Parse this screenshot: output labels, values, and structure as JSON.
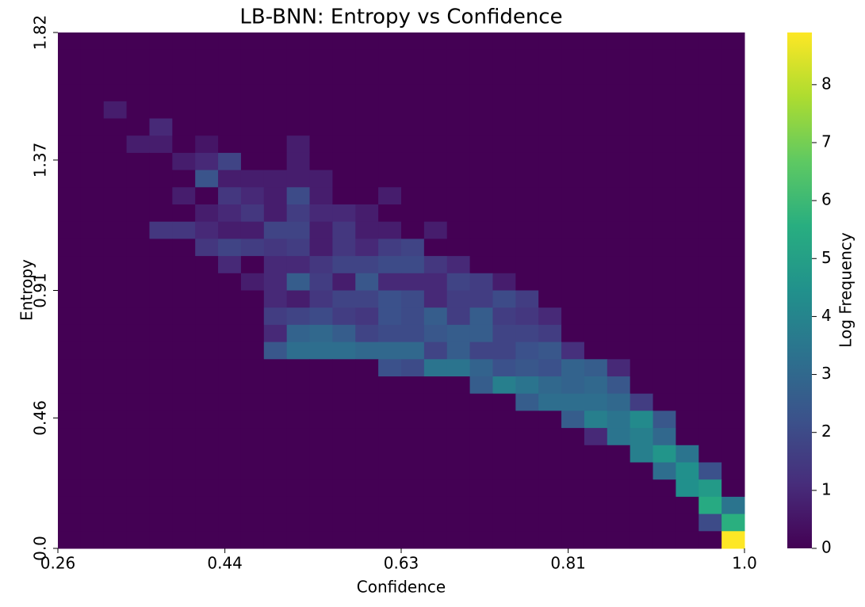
{
  "chart_data": {
    "type": "heatmap",
    "title": "LB-BNN: Entropy vs Confidence",
    "xlabel": "Confidence",
    "ylabel": "Entropy",
    "colorbar_label": "Log Frequency",
    "colormap": "viridis",
    "xlim": [
      0.26,
      1
    ],
    "xticks": [
      0.26,
      0.44,
      0.63,
      0.81,
      {
        "value": 1,
        "label": "1.0"
      }
    ],
    "ylim": [
      0,
      1.82
    ],
    "yticks": [
      {
        "value": 0,
        "label": "0.0"
      },
      0.46,
      0.91,
      1.37,
      1.82
    ],
    "zlim": [
      0,
      8.9
    ],
    "zticks": [
      0,
      1,
      2,
      3,
      4,
      5,
      6,
      7,
      8
    ],
    "values": [
      [
        0,
        0,
        0,
        0,
        0,
        0,
        0,
        0,
        0,
        0,
        0,
        0,
        0,
        0,
        0,
        0,
        0,
        0,
        0,
        0,
        0,
        0,
        0,
        0,
        0,
        0,
        0,
        0,
        0,
        0
      ],
      [
        0,
        0,
        0,
        0,
        0,
        0,
        0,
        0,
        0,
        0,
        0,
        0,
        0,
        0,
        0,
        0,
        0,
        0,
        0,
        0,
        0,
        0,
        0,
        0,
        0,
        0,
        0,
        0,
        0,
        0
      ],
      [
        0,
        0,
        0,
        0,
        0,
        0,
        0,
        0,
        0,
        0,
        0,
        0,
        0,
        0,
        0,
        0,
        0,
        0,
        0,
        0,
        0,
        0,
        0,
        0,
        0,
        0,
        0,
        0,
        0,
        0
      ],
      [
        0,
        0,
        0,
        0,
        0,
        0,
        0,
        0,
        0,
        0,
        0,
        0,
        0,
        0,
        0,
        0,
        0,
        0,
        0,
        0,
        0,
        0,
        0,
        0,
        0,
        0,
        0,
        0,
        0,
        0
      ],
      [
        0,
        0,
        0.7,
        0,
        0,
        0,
        0,
        0,
        0,
        0,
        0,
        0,
        0,
        0,
        0,
        0,
        0,
        0,
        0,
        0,
        0,
        0,
        0,
        0,
        0,
        0,
        0,
        0,
        0,
        0
      ],
      [
        0,
        0,
        0,
        0,
        1,
        0,
        0,
        0,
        0,
        0,
        0,
        0,
        0,
        0,
        0,
        0,
        0,
        0,
        0,
        0,
        0,
        0,
        0,
        0,
        0,
        0,
        0,
        0,
        0,
        0
      ],
      [
        0,
        0,
        0,
        0.7,
        0.7,
        0,
        0.5,
        0,
        0,
        0,
        0.7,
        0,
        0,
        0,
        0,
        0,
        0,
        0,
        0,
        0,
        0,
        0,
        0,
        0,
        0,
        0,
        0,
        0,
        0,
        0
      ],
      [
        0,
        0,
        0,
        0,
        0,
        0.7,
        1,
        1.8,
        0,
        0,
        0.7,
        0,
        0,
        0,
        0,
        0,
        0,
        0,
        0,
        0,
        0,
        0,
        0,
        0,
        0,
        0,
        0,
        0,
        0,
        0
      ],
      [
        0,
        0,
        0,
        0,
        0,
        0,
        2.3,
        0.7,
        0.7,
        0.7,
        0.7,
        0.7,
        0,
        0,
        0,
        0,
        0,
        0,
        0,
        0,
        0,
        0,
        0,
        0,
        0,
        0,
        0,
        0,
        0,
        0
      ],
      [
        0,
        0,
        0,
        0,
        0,
        0.7,
        0,
        1.4,
        1,
        0.7,
        2,
        0.7,
        0,
        0,
        0.7,
        0,
        0,
        0,
        0,
        0,
        0,
        0,
        0,
        0,
        0,
        0,
        0,
        0,
        0,
        0
      ],
      [
        0,
        0,
        0,
        0,
        0,
        0,
        0.7,
        1,
        1.4,
        0.7,
        1.6,
        1,
        1,
        0.7,
        0,
        0,
        0,
        0,
        0,
        0,
        0,
        0,
        0,
        0,
        0,
        0,
        0,
        0,
        0,
        0
      ],
      [
        0,
        0,
        0,
        0,
        1.4,
        1.4,
        1,
        0.7,
        0.7,
        1.8,
        1.8,
        0.7,
        1.4,
        0.7,
        0.7,
        0,
        0.7,
        0,
        0,
        0,
        0,
        0,
        0,
        0,
        0,
        0,
        0,
        0,
        0,
        0
      ],
      [
        0,
        0,
        0,
        0,
        0,
        0,
        1.4,
        1.8,
        1.6,
        1.4,
        1.6,
        0.7,
        1.4,
        1,
        1.6,
        1.8,
        0,
        0,
        0,
        0,
        0,
        0,
        0,
        0,
        0,
        0,
        0,
        0,
        0,
        0
      ],
      [
        0,
        0,
        0,
        0,
        0,
        0,
        0,
        1,
        0,
        1,
        1,
        1.4,
        1.8,
        1.8,
        2,
        2,
        1.4,
        1,
        0,
        0,
        0,
        0,
        0,
        0,
        0,
        0,
        0,
        0,
        0,
        0
      ],
      [
        0,
        0,
        0,
        0,
        0,
        0,
        0,
        0,
        0.7,
        1,
        2.6,
        1.6,
        0.7,
        2.4,
        1,
        1,
        1,
        1.8,
        1.6,
        0.7,
        0,
        0,
        0,
        0,
        0,
        0,
        0,
        0,
        0,
        0
      ],
      [
        0,
        0,
        0,
        0,
        0,
        0,
        0,
        0,
        0,
        1,
        0.7,
        1.4,
        1.8,
        1.8,
        2.2,
        2,
        1,
        1.6,
        1.6,
        2,
        1.6,
        0,
        0,
        0,
        0,
        0,
        0,
        0,
        0,
        0
      ],
      [
        0,
        0,
        0,
        0,
        0,
        0,
        0,
        0,
        0,
        1.6,
        1.8,
        2,
        1.6,
        1.4,
        2.2,
        2,
        2.6,
        1.6,
        2.6,
        1.6,
        1.4,
        1,
        0,
        0,
        0,
        0,
        0,
        0,
        0,
        0
      ],
      [
        0,
        0,
        0,
        0,
        0,
        0,
        0,
        0,
        0,
        1,
        2.8,
        3,
        2.6,
        1.8,
        2,
        2,
        2.4,
        2.6,
        2.6,
        1.8,
        1.8,
        1.6,
        0,
        0,
        0,
        0,
        0,
        0,
        0,
        0
      ],
      [
        0,
        0,
        0,
        0,
        0,
        0,
        0,
        0,
        0,
        2.4,
        3.2,
        3.2,
        3.2,
        3,
        3,
        3,
        1.8,
        2.6,
        1.8,
        1.8,
        2.2,
        2.4,
        1.2,
        0,
        0,
        0,
        0,
        0,
        0,
        0
      ],
      [
        0,
        0,
        0,
        0,
        0,
        0,
        0,
        0,
        0,
        0,
        0,
        0,
        0,
        0,
        2.2,
        2,
        3.4,
        3.4,
        2.8,
        2.2,
        2.4,
        2.2,
        2.8,
        2.6,
        1,
        0,
        0,
        0,
        0,
        0
      ],
      [
        0,
        0,
        0,
        0,
        0,
        0,
        0,
        0,
        0,
        0,
        0,
        0,
        0,
        0,
        0,
        0,
        0,
        0,
        2.6,
        3.8,
        3.4,
        3,
        2.8,
        3,
        2.4,
        0,
        0,
        0,
        0,
        0
      ],
      [
        0,
        0,
        0,
        0,
        0,
        0,
        0,
        0,
        0,
        0,
        0,
        0,
        0,
        0,
        0,
        0,
        0,
        0,
        0,
        0,
        2.6,
        3.2,
        3.2,
        3.2,
        3,
        1.6,
        0,
        0,
        0,
        0
      ],
      [
        0,
        0,
        0,
        0,
        0,
        0,
        0,
        0,
        0,
        0,
        0,
        0,
        0,
        0,
        0,
        0,
        0,
        0,
        0,
        0,
        0,
        0,
        2.6,
        3.8,
        3.4,
        4.2,
        2.4,
        0,
        0,
        0
      ],
      [
        0,
        0,
        0,
        0,
        0,
        0,
        0,
        0,
        0,
        0,
        0,
        0,
        0,
        0,
        0,
        0,
        0,
        0,
        0,
        0,
        0,
        0,
        0,
        1,
        3.4,
        3.8,
        3,
        0,
        0,
        0
      ],
      [
        0,
        0,
        0,
        0,
        0,
        0,
        0,
        0,
        0,
        0,
        0,
        0,
        0,
        0,
        0,
        0,
        0,
        0,
        0,
        0,
        0,
        0,
        0,
        0,
        0,
        3.8,
        4.6,
        3.4,
        0,
        0
      ],
      [
        0,
        0,
        0,
        0,
        0,
        0,
        0,
        0,
        0,
        0,
        0,
        0,
        0,
        0,
        0,
        0,
        0,
        0,
        0,
        0,
        0,
        0,
        0,
        0,
        0,
        0,
        3.2,
        4.4,
        2.2,
        0
      ],
      [
        0,
        0,
        0,
        0,
        0,
        0,
        0,
        0,
        0,
        0,
        0,
        0,
        0,
        0,
        0,
        0,
        0,
        0,
        0,
        0,
        0,
        0,
        0,
        0,
        0,
        0,
        0,
        4.4,
        4.8,
        0
      ],
      [
        0,
        0,
        0,
        0,
        0,
        0,
        0,
        0,
        0,
        0,
        0,
        0,
        0,
        0,
        0,
        0,
        0,
        0,
        0,
        0,
        0,
        0,
        0,
        0,
        0,
        0,
        0,
        0,
        5.4,
        3.4
      ],
      [
        0,
        0,
        0,
        0,
        0,
        0,
        0,
        0,
        0,
        0,
        0,
        0,
        0,
        0,
        0,
        0,
        0,
        0,
        0,
        0,
        0,
        0,
        0,
        0,
        0,
        0,
        0,
        0,
        2,
        5.6
      ],
      [
        0,
        0,
        0,
        0,
        0,
        0,
        0,
        0,
        0,
        0,
        0,
        0,
        0,
        0,
        0,
        0,
        0,
        0,
        0,
        0,
        0,
        0,
        0,
        0,
        0,
        0,
        0,
        0,
        0,
        8.9
      ]
    ]
  }
}
